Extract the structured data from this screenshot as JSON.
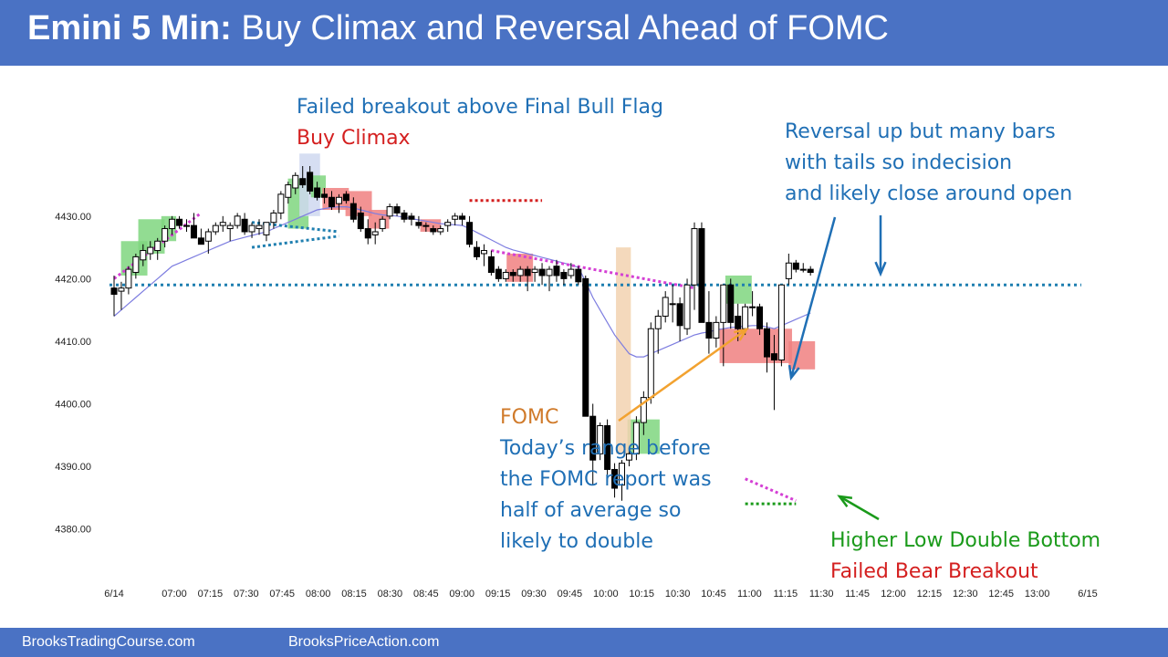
{
  "header": {
    "title_bold": "Emini 5 Min:",
    "title_rest": "Buy Climax and Reversal Ahead of FOMC"
  },
  "footer": {
    "left_link": "BrooksTradingCourse.com",
    "right_link": "BrooksPriceAction.com"
  },
  "colors": {
    "banner": "#4a72c4",
    "annotation_blue": "#1f6fb5",
    "annotation_red": "#d41f1f",
    "annotation_orange": "#d07a2a",
    "annotation_green": "#1a9a1a",
    "bull_highlight": "#7fd67f",
    "bear_highlight": "#f08080",
    "ema_line": "#7d7de0",
    "magenta_trendline": "#d43fd4",
    "teal_dotted": "#1f7fb0"
  },
  "annotations": {
    "failed_breakout": "Failed breakout above Final Bull Flag",
    "buy_climax": "Buy Climax",
    "reversal_1": "Reversal up but many bars",
    "reversal_2": "with tails so indecision",
    "reversal_3": "and likely close around open",
    "fomc_title": "FOMC",
    "fomc_1": "Today’s range before",
    "fomc_2": "the FOMC report was",
    "fomc_3": "half of average so",
    "fomc_4": "likely to double",
    "hl_double_bottom": "Higher Low Double Bottom",
    "failed_bear_breakout": "Failed Bear Breakout"
  },
  "chart_data": {
    "type": "candlestick",
    "symbol": "Emini",
    "timeframe": "5 Min",
    "y_ticks": [
      "4430.00",
      "4420.00",
      "4410.00",
      "4400.00",
      "4390.00",
      "4380.00"
    ],
    "ylim": [
      4376,
      4438
    ],
    "x_ticks": [
      "6/14",
      "07:00",
      "07:15",
      "07:30",
      "07:45",
      "08:00",
      "08:15",
      "08:30",
      "08:45",
      "09:00",
      "09:15",
      "09:30",
      "09:45",
      "10:00",
      "10:15",
      "10:30",
      "10:45",
      "11:00",
      "11:15",
      "11:30",
      "11:45",
      "12:00",
      "12:15",
      "12:30",
      "12:45",
      "13:00",
      "6/15"
    ],
    "horizontal_line": 4419,
    "candles": [
      [
        4418.5,
        4420.5,
        4414,
        4417.5
      ],
      [
        4418,
        4419.5,
        4415,
        4418.5
      ],
      [
        4418.5,
        4422,
        4417.5,
        4421.5
      ],
      [
        4421,
        4424,
        4420,
        4423.5
      ],
      [
        4423,
        4425.5,
        4422,
        4424.5
      ],
      [
        4424,
        4426,
        4423,
        4425
      ],
      [
        4424.5,
        4426.5,
        4423,
        4426
      ],
      [
        4426,
        4428.5,
        4425,
        4428
      ],
      [
        4428,
        4430,
        4427,
        4429.5
      ],
      [
        4429.5,
        4430,
        4428,
        4428.5
      ],
      [
        4428.5,
        4429.5,
        4427.5,
        4428.5
      ],
      [
        4428.5,
        4430.5,
        4427,
        4426.5
      ],
      [
        4426.5,
        4428,
        4425.5,
        4425.5
      ],
      [
        4426,
        4428,
        4424,
        4427.5
      ],
      [
        4427.5,
        4429,
        4427,
        4428.5
      ],
      [
        4428.5,
        4430,
        4427.5,
        4429
      ],
      [
        4428,
        4429,
        4426,
        4428.5
      ],
      [
        4428.5,
        4430.5,
        4428,
        4430
      ],
      [
        4429.5,
        4430.5,
        4427,
        4427.5
      ],
      [
        4427.5,
        4429,
        4426.5,
        4428.5
      ],
      [
        4428,
        4429.5,
        4427,
        4428.5
      ],
      [
        4427,
        4429,
        4426,
        4429
      ],
      [
        4429,
        4431,
        4428,
        4430.5
      ],
      [
        4430.5,
        4434,
        4429.5,
        4433.5
      ],
      [
        4433,
        4435.5,
        4432,
        4435
      ],
      [
        4434.5,
        4437,
        4433.5,
        4436.5
      ],
      [
        4436,
        4438,
        4434.5,
        4435
      ],
      [
        4437,
        4438,
        4433.5,
        4434
      ],
      [
        4434.5,
        4435.5,
        4432.5,
        4433
      ],
      [
        4433.5,
        4434.5,
        4432,
        4433
      ],
      [
        4433,
        4434,
        4431,
        4431.5
      ],
      [
        4432,
        4433.5,
        4430.5,
        4433
      ],
      [
        4433.5,
        4434,
        4432,
        4432.5
      ],
      [
        4432,
        4433,
        4429,
        4429.5
      ],
      [
        4430.5,
        4431.5,
        4427.5,
        4428
      ],
      [
        4428,
        4429.5,
        4425.5,
        4426.5
      ],
      [
        4427,
        4429,
        4425.5,
        4427.5
      ],
      [
        4428,
        4430,
        4427.5,
        4429.5
      ],
      [
        4430,
        4432,
        4429.5,
        4431.5
      ],
      [
        4431.5,
        4432,
        4430,
        4430.5
      ],
      [
        4430.5,
        4431,
        4429,
        4429.5
      ],
      [
        4430,
        4430.5,
        4428.5,
        4429.5
      ],
      [
        4429,
        4430,
        4428,
        4428.5
      ],
      [
        4428.5,
        4429,
        4427.5,
        4428.5
      ],
      [
        4428,
        4428.5,
        4427,
        4427.5
      ],
      [
        4427.5,
        4428.5,
        4427,
        4428
      ],
      [
        4428.5,
        4429.5,
        4427.5,
        4429
      ],
      [
        4429.5,
        4430.5,
        4428.5,
        4430
      ],
      [
        4430,
        4430.5,
        4428.5,
        4429.5
      ],
      [
        4429,
        4430,
        4425,
        4425.5
      ],
      [
        4425,
        4426,
        4423,
        4423.5
      ],
      [
        4424,
        4425.5,
        4422,
        4424.5
      ],
      [
        4423.5,
        4424.5,
        4420.5,
        4421
      ],
      [
        4421.5,
        4422,
        4419.5,
        4420
      ],
      [
        4420,
        4421.5,
        4419.5,
        4421
      ],
      [
        4421,
        4421.5,
        4419.5,
        4420.5
      ],
      [
        4420.5,
        4422,
        4419.5,
        4421.5
      ],
      [
        4421.5,
        4422,
        4418,
        4420.5
      ],
      [
        4421,
        4422,
        4419.5,
        4421.5
      ],
      [
        4421.5,
        4422.5,
        4419,
        4420.5
      ],
      [
        4420.5,
        4422,
        4418,
        4421.5
      ],
      [
        4422,
        4423,
        4419.5,
        4420.5
      ],
      [
        4421,
        4421.5,
        4419,
        4420
      ],
      [
        4420.5,
        4422.5,
        4420,
        4421.5
      ],
      [
        4421.5,
        4422,
        4419,
        4419.5
      ],
      [
        4420,
        4420.5,
        4398.5,
        4398
      ],
      [
        4398,
        4400,
        4387,
        4391
      ],
      [
        4392,
        4397,
        4391,
        4396.5
      ],
      [
        4396.5,
        4397.5,
        4387.5,
        4389.5
      ],
      [
        4389.5,
        4390.5,
        4385,
        4386.5
      ],
      [
        4387,
        4391,
        4384.5,
        4390.5
      ],
      [
        4391,
        4393,
        4390,
        4392
      ],
      [
        4392,
        4398,
        4391,
        4397
      ],
      [
        4397,
        4402,
        4395,
        4401
      ],
      [
        4401,
        4413,
        4400,
        4412
      ],
      [
        4412,
        4415,
        4408,
        4414
      ],
      [
        4414,
        4418,
        4413,
        4417
      ],
      [
        4416,
        4419,
        4413,
        4416
      ],
      [
        4416,
        4417,
        4410,
        4412.5
      ],
      [
        4412,
        4420,
        4411,
        4419
      ],
      [
        4419,
        4429,
        4415,
        4428
      ],
      [
        4428,
        4429,
        4413,
        4413
      ],
      [
        4413,
        4418,
        4408,
        4410.5
      ],
      [
        4410.5,
        4414,
        4409,
        4413
      ],
      [
        4413,
        4419,
        4406,
        4419
      ],
      [
        4419,
        4420,
        4412,
        4413
      ],
      [
        4414,
        4416,
        4410,
        4412
      ],
      [
        4412,
        4416,
        4411,
        4415.5
      ],
      [
        4415.5,
        4418,
        4414,
        4415.5
      ],
      [
        4415.5,
        4416,
        4411,
        4412
      ],
      [
        4412,
        4413,
        4405,
        4407.5
      ],
      [
        4408,
        4411,
        4399,
        4407
      ],
      [
        4407,
        4419,
        4406,
        4419
      ],
      [
        4420,
        4424,
        4419,
        4422.5
      ],
      [
        4422.5,
        4423,
        4421,
        4421.5
      ],
      [
        4421.5,
        4422.5,
        4421,
        4421.5
      ],
      [
        4421.5,
        4422,
        4420.5,
        4421
      ]
    ],
    "ema_20": [
      4414,
      4415,
      4416,
      4417,
      4418,
      4419,
      4420,
      4421,
      4422,
      4422.5,
      4423,
      4423.5,
      4424,
      4424.5,
      4425,
      4425.5,
      4426,
      4426.3,
      4426.6,
      4426.9,
      4427.2,
      4427.5,
      4428,
      4428.5,
      4429,
      4429.5,
      4430,
      4430.5,
      4431,
      4431.2,
      4431.4,
      4431.5,
      4431.5,
      4431.3,
      4431,
      4430.7,
      4430.4,
      4430.2,
      4430.1,
      4430,
      4429.8,
      4429.6,
      4429.4,
      4429.2,
      4429,
      4428.8,
      4428.7,
      4428.6,
      4428.5,
      4428,
      4427.4,
      4426.8,
      4426.2,
      4425.6,
      4425,
      4424.6,
      4424.3,
      4424,
      4423.7,
      4423.4,
      4423.1,
      4422.8,
      4422.5,
      4422.2,
      4421.8,
      4419.5,
      4417,
      4415,
      4413,
      4411,
      4409.5,
      4408,
      4407.5,
      4407.5,
      4408,
      4408.5,
      4409,
      4409.5,
      4410,
      4410.5,
      4411,
      4411.3,
      4411.5,
      4411.8,
      4412,
      4412.2,
      4412.3,
      4412.4,
      4412.5,
      4412.5,
      4412.3,
      4412,
      4412.5,
      4413,
      4413.5,
      4414,
      4414.5
    ]
  }
}
